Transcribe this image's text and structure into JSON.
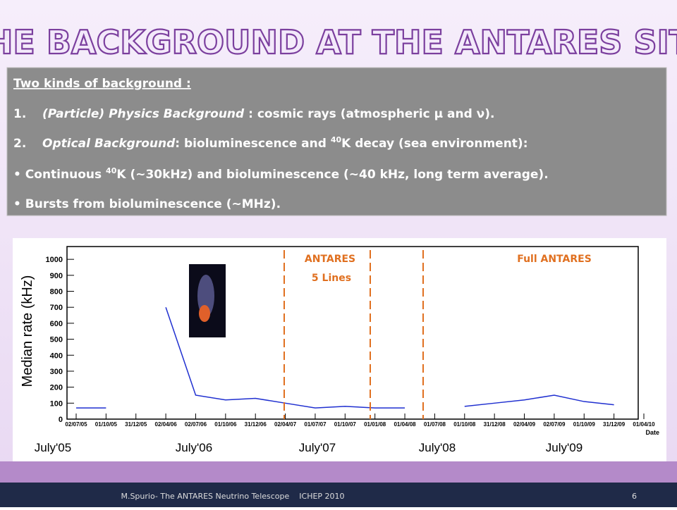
{
  "title": "THE BACKGROUND AT THE ANTARES SITE",
  "box": {
    "heading": "Two kinds of background :",
    "items": [
      {
        "number": "1.",
        "emph": "(Particle) Physics Background",
        "rest": " : cosmic rays (atmospheric μ and ν)."
      },
      {
        "number": "2.",
        "emph": "Optical Background",
        "rest1": ": bioluminescence and ",
        "sup": "40",
        "rest2": "K decay (sea environment):"
      }
    ],
    "bullets": [
      {
        "pre": "Continuous ",
        "sup": "40",
        "post": "K (~30kHz) and bioluminescence (~40 kHz, long term average)."
      },
      {
        "text": "Bursts from bioluminescence (~MHz)."
      }
    ]
  },
  "chart_data": {
    "type": "line",
    "ylabel": "Median rate  (kHz)",
    "xlabel": "Date",
    "categories": [
      "02/07/05",
      "01/10/05",
      "31/12/05",
      "02/04/06",
      "02/07/06",
      "01/10/06",
      "31/12/06",
      "02/04/07",
      "01/07/07",
      "01/10/07",
      "01/01/08",
      "01/04/08",
      "01/07/08",
      "01/10/08",
      "31/12/08",
      "02/04/09",
      "02/07/09",
      "01/10/09",
      "31/12/09",
      "01/04/10"
    ],
    "values": [
      70,
      70,
      null,
      700,
      150,
      120,
      130,
      100,
      70,
      80,
      70,
      70,
      null,
      80,
      100,
      120,
      150,
      110,
      90,
      null
    ],
    "color": "#1f2fd0",
    "ylim": [
      0,
      1080
    ],
    "yticks": [
      0,
      100,
      200,
      300,
      400,
      500,
      600,
      700,
      800,
      900,
      1000
    ],
    "annotations": [
      "ANTARES",
      "5 Lines",
      "Full ANTARES"
    ],
    "seasons": [
      "July'05",
      "July'06",
      "July'07",
      "July'08",
      "July'09"
    ]
  },
  "footer": {
    "text": "M.Spurio- The ANTARES Neutrino Telescope    ICHEP 2010",
    "page": "6"
  }
}
